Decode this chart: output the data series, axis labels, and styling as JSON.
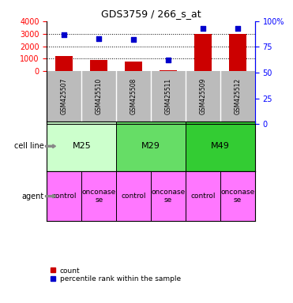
{
  "title": "GDS3759 / 266_s_at",
  "samples": [
    "GSM425507",
    "GSM425510",
    "GSM425508",
    "GSM425511",
    "GSM425509",
    "GSM425512"
  ],
  "counts": [
    1200,
    900,
    800,
    100,
    3000,
    3000
  ],
  "percentiles": [
    87,
    83,
    82,
    62,
    93,
    93
  ],
  "ylim_left": [
    0,
    4000
  ],
  "ylim_right": [
    0,
    100
  ],
  "yticks_left": [
    0,
    1000,
    2000,
    3000,
    4000
  ],
  "yticks_right": [
    0,
    25,
    50,
    75,
    100
  ],
  "ytick_right_labels": [
    "0",
    "25",
    "50",
    "75",
    "100%"
  ],
  "bar_color": "#cc0000",
  "scatter_color": "#0000cc",
  "cell_lines": [
    {
      "label": "M25",
      "start": 0,
      "end": 2,
      "color": "#ccffcc"
    },
    {
      "label": "M29",
      "start": 2,
      "end": 4,
      "color": "#66dd66"
    },
    {
      "label": "M49",
      "start": 4,
      "end": 6,
      "color": "#33cc33"
    }
  ],
  "agent_labels": [
    "control",
    "onconase\nse",
    "control",
    "onconase\nse",
    "control",
    "onconase\nse"
  ],
  "agent_color": "#ff77ff",
  "sample_bg_color": "#bbbbbb",
  "legend_count_color": "#cc0000",
  "legend_pct_color": "#0000cc",
  "left_label_color": "#888888",
  "n_samples": 6
}
